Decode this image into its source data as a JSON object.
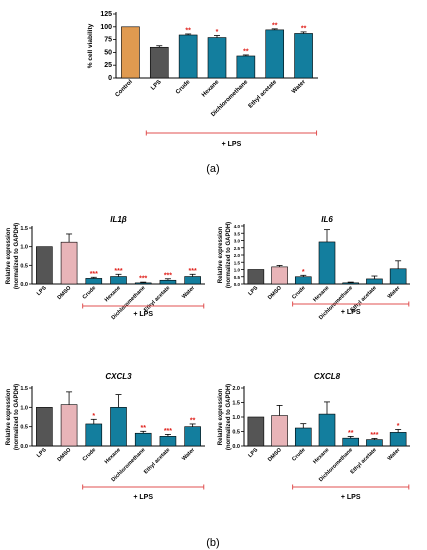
{
  "figure": {
    "panel_a_label": "(a)",
    "panel_b_label": "(b)"
  },
  "colors": {
    "control": "#e09a50",
    "lps": "#555555",
    "dmso": "#e8b4b8",
    "extract": "#137e9e",
    "sig": "#e0201b",
    "bracket": "#e05050"
  },
  "chart_data": [
    {
      "id": "viability",
      "type": "bar",
      "title": "",
      "ylabel": "% cell viability",
      "xlabel": "",
      "ylim": [
        0,
        125
      ],
      "yticks": [
        0,
        25,
        50,
        75,
        100,
        125
      ],
      "categories": [
        "Control",
        "LPS",
        "Crude",
        "Hexane",
        "Dichloromethane",
        "Ethyl acetate",
        "Water"
      ],
      "values": [
        100,
        60,
        84,
        79,
        43,
        94,
        87
      ],
      "errors": [
        0,
        3,
        2,
        4,
        2,
        2,
        3
      ],
      "significance": [
        "",
        "",
        "**",
        "*",
        "**",
        "**",
        "**"
      ],
      "bracket_label": "+ LPS",
      "bracket_from": 1,
      "bracket_to": 6,
      "grid": false
    },
    {
      "id": "il1b",
      "type": "bar",
      "title": "IL1β",
      "ylabel": "Relative expression (normalized to GAPDH)",
      "ylim": [
        0,
        1.5
      ],
      "yticks": [
        0.0,
        0.5,
        1.0,
        1.5
      ],
      "categories": [
        "LPS",
        "DMSO",
        "Crude",
        "Hexane",
        "Dichloromethane",
        "Ethyl acetate",
        "Water"
      ],
      "values": [
        1.0,
        1.12,
        0.15,
        0.2,
        0.03,
        0.1,
        0.2
      ],
      "errors": [
        0,
        0.22,
        0.03,
        0.06,
        0.02,
        0.04,
        0.06
      ],
      "significance": [
        "",
        "",
        "***",
        "***",
        "***",
        "***",
        "***"
      ],
      "bracket_label": "+ LPS",
      "grid": false
    },
    {
      "id": "il6",
      "type": "bar",
      "title": "IL6",
      "ylabel": "Relative expression (normalized to GAPDH)",
      "ylim": [
        0,
        4.0
      ],
      "yticks": [
        0.0,
        0.5,
        1.0,
        1.5,
        2.0,
        2.5,
        3.0,
        3.5,
        4.0
      ],
      "categories": [
        "LPS",
        "DMSO",
        "Crude",
        "Hexane",
        "Dichloromethane",
        "Ethyl acetate",
        "Water"
      ],
      "values": [
        1.0,
        1.18,
        0.5,
        2.9,
        0.08,
        0.35,
        1.05
      ],
      "errors": [
        0,
        0.1,
        0.1,
        0.85,
        0.05,
        0.2,
        0.55
      ],
      "significance": [
        "",
        "",
        "*",
        "",
        "",
        "",
        ""
      ],
      "bracket_label": "+ LPS",
      "grid": false
    },
    {
      "id": "cxcl3",
      "type": "bar",
      "title": "CXCL3",
      "ylabel": "Relative expression (normalized to GAPDH)",
      "ylim": [
        0,
        1.5
      ],
      "yticks": [
        0.0,
        0.5,
        1.0,
        1.5
      ],
      "categories": [
        "LPS",
        "DMSO",
        "Crude",
        "Hexane",
        "Dichloromethane",
        "Ethyl acetate",
        "Water"
      ],
      "values": [
        1.0,
        1.07,
        0.57,
        1.0,
        0.33,
        0.25,
        0.5
      ],
      "errors": [
        0,
        0.33,
        0.12,
        0.33,
        0.05,
        0.05,
        0.07
      ],
      "significance": [
        "",
        "",
        "*",
        "",
        "**",
        "***",
        "**"
      ],
      "bracket_label": "+ LPS",
      "grid": false
    },
    {
      "id": "cxcl8",
      "type": "bar",
      "title": "CXCL8",
      "ylabel": "Relative expression (normalized to GAPDH)",
      "ylim": [
        0,
        2.0
      ],
      "yticks": [
        0.0,
        0.5,
        1.0,
        1.5,
        2.0
      ],
      "categories": [
        "LPS",
        "DMSO",
        "Crude",
        "Hexane",
        "Dichloromethane",
        "Ethyl acetate",
        "Water"
      ],
      "values": [
        1.0,
        1.05,
        0.62,
        1.1,
        0.27,
        0.22,
        0.47
      ],
      "errors": [
        0,
        0.35,
        0.15,
        0.42,
        0.06,
        0.04,
        0.1
      ],
      "significance": [
        "",
        "",
        "",
        "",
        "**",
        "***",
        "*"
      ],
      "bracket_label": "+ LPS",
      "grid": false
    }
  ]
}
